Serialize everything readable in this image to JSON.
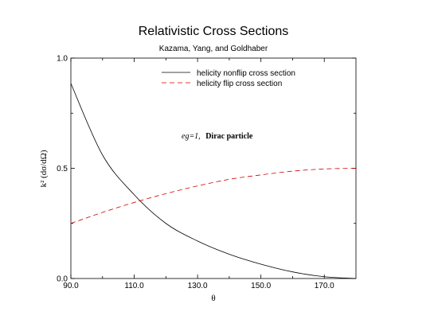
{
  "chart_data": {
    "type": "line",
    "title": "Relativistic Cross Sections",
    "subtitle": "Kazama, Yang, and Goldhaber",
    "xlabel": "θ",
    "ylabel": "k² (dσ/dΩ)",
    "xlim": [
      90,
      180
    ],
    "ylim": [
      0,
      1
    ],
    "xticks": [
      90,
      110,
      130,
      150,
      170
    ],
    "xtick_labels": [
      "90.0",
      "110.0",
      "130.0",
      "150.0",
      "170.0"
    ],
    "yticks": [
      0,
      0.5,
      1
    ],
    "ytick_labels": [
      "0.0",
      "0.5",
      "1.0"
    ],
    "grid": false,
    "legend_position": "top-right",
    "annotation": {
      "italic_part": "eg=1,",
      "bold_part": "Dirac particle"
    },
    "series": [
      {
        "name": "helicity nonflip cross section",
        "color": "#000000",
        "dash": "solid",
        "x": [
          90,
          100,
          110,
          120,
          130,
          140,
          150,
          160,
          170,
          180
        ],
        "y": [
          0.885,
          0.56,
          0.38,
          0.25,
          0.17,
          0.11,
          0.065,
          0.03,
          0.008,
          0.0
        ]
      },
      {
        "name": "helicity flip cross section",
        "color": "#cc0000",
        "dash": "dashed",
        "x": [
          90,
          100,
          110,
          120,
          130,
          140,
          150,
          160,
          170,
          180
        ],
        "y": [
          0.25,
          0.3,
          0.345,
          0.385,
          0.42,
          0.45,
          0.47,
          0.487,
          0.497,
          0.5
        ]
      }
    ]
  }
}
